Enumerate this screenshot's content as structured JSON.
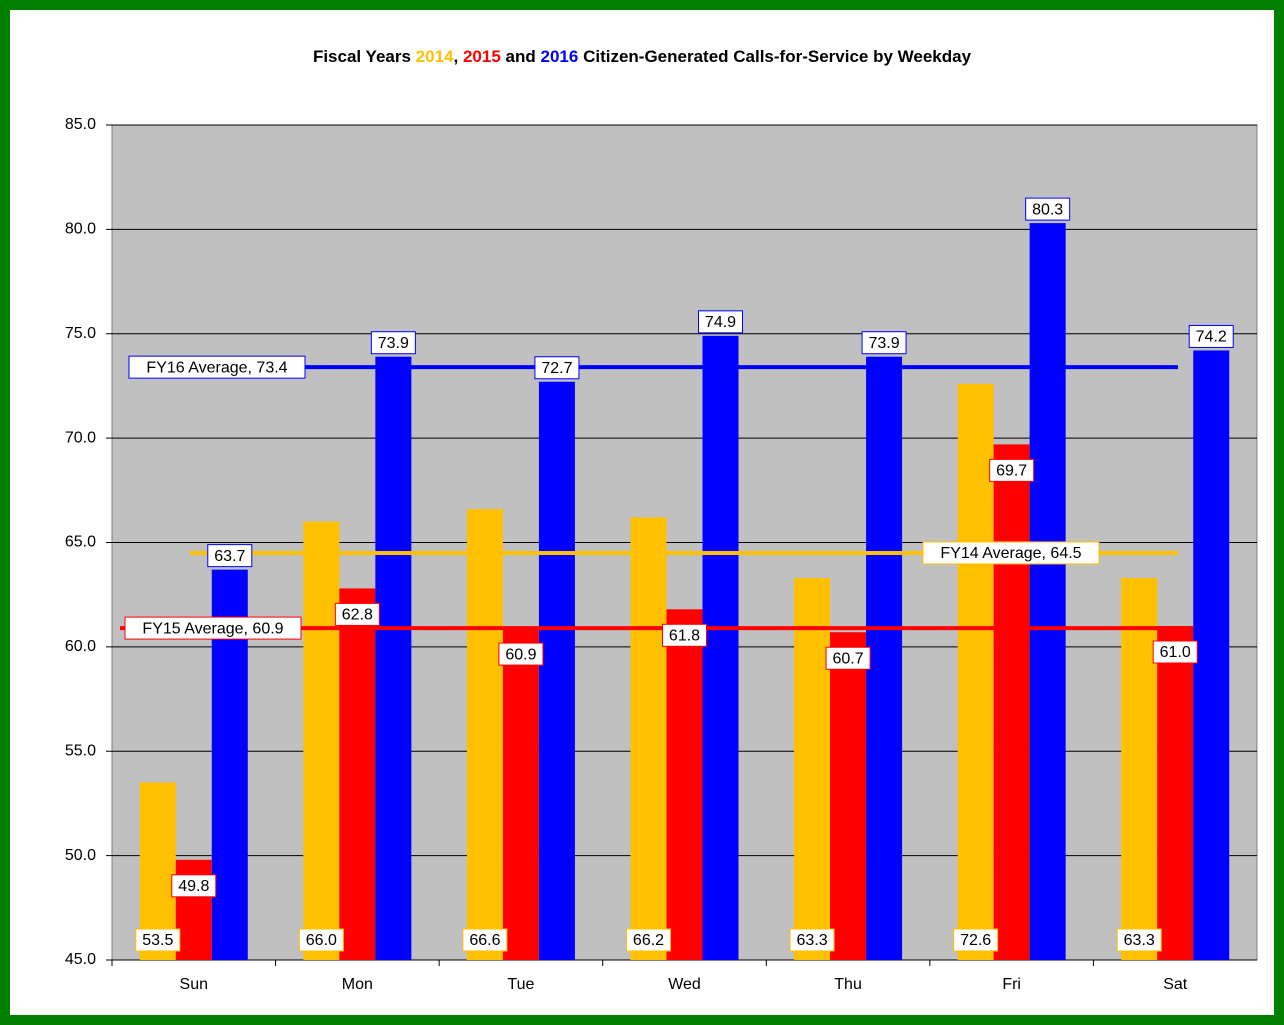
{
  "chart_data": {
    "type": "bar",
    "title_parts": [
      "Fiscal Years",
      ",",
      "and",
      "Citizen-Generated Calls-for-Service by Weekday"
    ],
    "categories": [
      "Sun",
      "Mon",
      "Tue",
      "Wed",
      "Thu",
      "Fri",
      "Sat"
    ],
    "series": [
      {
        "name": "2014",
        "color": "#ffc000",
        "values": [
          53.5,
          66.0,
          66.6,
          66.2,
          63.3,
          72.6,
          63.3
        ],
        "value_labels": [
          "53.5",
          "66.0",
          "66.6",
          "66.2",
          "63.3",
          "72.6",
          "63.3"
        ]
      },
      {
        "name": "2015",
        "color": "#ff0000",
        "values": [
          49.8,
          62.8,
          60.9,
          61.8,
          60.7,
          69.7,
          61.0
        ],
        "value_labels": [
          "49.8",
          "62.8",
          "60.9",
          "61.8",
          "60.7",
          "69.7",
          "61.0"
        ]
      },
      {
        "name": "2016",
        "color": "#0000ff",
        "values": [
          63.7,
          73.9,
          72.7,
          74.9,
          73.9,
          80.3,
          74.2
        ],
        "value_labels": [
          "63.7",
          "73.9",
          "72.7",
          "74.9",
          "73.9",
          "80.3",
          "74.2"
        ]
      }
    ],
    "averages": [
      {
        "label": "FY14 Average, 64.5",
        "value": 64.5,
        "color": "#ffc000"
      },
      {
        "label": "FY15 Average, 60.9",
        "value": 60.9,
        "color": "#ff0000"
      },
      {
        "label": "FY16 Average, 73.4",
        "value": 73.4,
        "color": "#0000ff"
      }
    ],
    "ylim": [
      45,
      85
    ],
    "yticks": [
      {
        "value": 45,
        "label": "45.0"
      },
      {
        "value": 50,
        "label": "50.0"
      },
      {
        "value": 55,
        "label": "55.0"
      },
      {
        "value": 60,
        "label": "60.0"
      },
      {
        "value": 65,
        "label": "65.0"
      },
      {
        "value": 70,
        "label": "70.0"
      },
      {
        "value": 75,
        "label": "75.0"
      },
      {
        "value": 80,
        "label": "80.0"
      },
      {
        "value": 85,
        "label": "85.0"
      }
    ],
    "grid": true
  }
}
